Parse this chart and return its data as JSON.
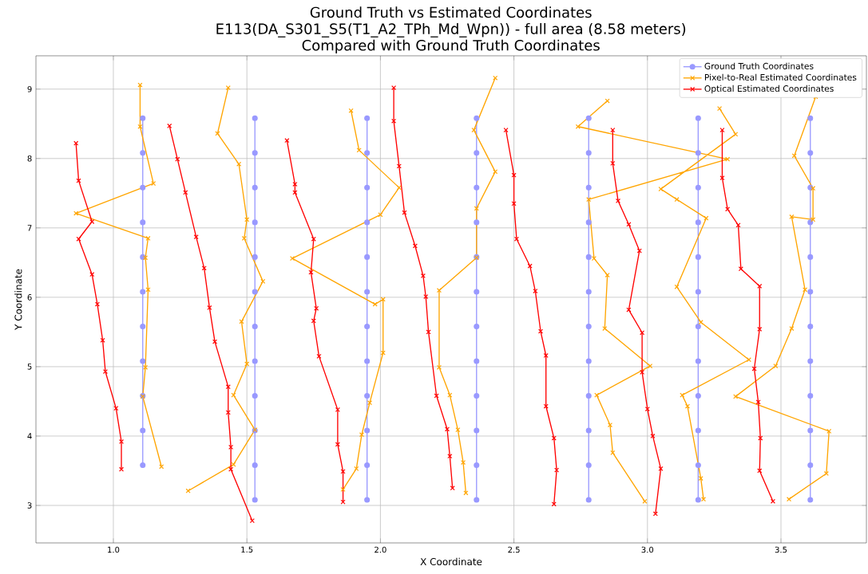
{
  "chart_data": {
    "type": "line",
    "title": "Ground Truth vs Estimated Coordinates",
    "subtitle": "E113(DA_S301_S5(T1_A2_TPh_Md_Wpn)) - full area (8.58 meters)",
    "annotations": [
      "Compared with Ground Truth Coordinates"
    ],
    "xlabel": "X Coordinate",
    "ylabel": "Y Coordinate",
    "xlim": [
      0.71,
      3.82
    ],
    "ylim": [
      2.46,
      9.48
    ],
    "xticks": [
      {
        "value": 1.0,
        "label": "1.0"
      },
      {
        "value": 1.5,
        "label": "1.5"
      },
      {
        "value": 2.0,
        "label": "2.0"
      },
      {
        "value": 2.5,
        "label": "2.5"
      },
      {
        "value": 3.0,
        "label": "3.0"
      },
      {
        "value": 3.5,
        "label": "3.5"
      }
    ],
    "yticks": [
      3,
      4,
      5,
      6,
      7,
      8,
      9
    ],
    "grid": true,
    "legend": "top right",
    "line_style": "solid",
    "series": [
      {
        "name": "Ground Truth Coordinates",
        "color": "#9999ff",
        "marker": "circle",
        "x": [
          1.11,
          1.11,
          1.11,
          1.11,
          1.11,
          1.11,
          1.11,
          1.11,
          1.11,
          1.11,
          1.11,
          null,
          1.53,
          1.53,
          1.53,
          1.53,
          1.53,
          1.53,
          1.53,
          1.53,
          1.53,
          1.53,
          1.53,
          1.53,
          null,
          1.95,
          1.95,
          1.95,
          1.95,
          1.95,
          1.95,
          1.95,
          1.95,
          1.95,
          1.95,
          1.95,
          1.95,
          null,
          2.36,
          2.36,
          2.36,
          2.36,
          2.36,
          2.36,
          2.36,
          2.36,
          2.36,
          2.36,
          2.36,
          2.36,
          null,
          2.78,
          2.78,
          2.78,
          2.78,
          2.78,
          2.78,
          2.78,
          2.78,
          2.78,
          2.78,
          2.78,
          2.78,
          null,
          3.19,
          3.19,
          3.19,
          3.19,
          3.19,
          3.19,
          3.19,
          3.19,
          3.19,
          3.19,
          3.19,
          3.19,
          null,
          3.61,
          3.61,
          3.61,
          3.61,
          3.61,
          3.61,
          3.61,
          3.61,
          3.61,
          3.61,
          3.61,
          3.61
        ],
        "values": [
          8.58,
          8.08,
          7.58,
          7.08,
          6.58,
          6.08,
          5.58,
          5.08,
          4.58,
          4.08,
          3.58,
          null,
          8.58,
          8.08,
          7.58,
          7.08,
          6.58,
          6.08,
          5.58,
          5.08,
          4.58,
          4.08,
          3.58,
          3.08,
          null,
          8.58,
          8.08,
          7.58,
          7.08,
          6.58,
          6.08,
          5.58,
          5.08,
          4.58,
          4.08,
          3.58,
          3.08,
          null,
          8.58,
          8.08,
          7.58,
          7.08,
          6.58,
          6.08,
          5.58,
          5.08,
          4.58,
          4.08,
          3.58,
          3.08,
          null,
          8.58,
          8.08,
          7.58,
          7.08,
          6.58,
          6.08,
          5.58,
          5.08,
          4.58,
          4.08,
          3.58,
          3.08,
          null,
          8.58,
          8.08,
          7.58,
          7.08,
          6.58,
          6.08,
          5.58,
          5.08,
          4.58,
          4.08,
          3.58,
          3.08,
          null,
          8.58,
          8.08,
          7.58,
          7.08,
          6.58,
          6.08,
          5.58,
          5.08,
          4.58,
          4.08,
          3.58,
          3.08
        ]
      },
      {
        "name": "Pixel-to-Real Estimated Coordinates",
        "color": "#ffa500",
        "marker": "cross",
        "x": [
          1.1,
          1.1,
          1.15,
          0.86,
          1.13,
          1.12,
          1.13,
          1.12,
          1.11,
          1.18,
          null,
          1.43,
          1.39,
          1.47,
          1.5,
          1.49,
          1.56,
          1.48,
          1.5,
          1.45,
          1.53,
          1.45,
          1.28,
          null,
          1.89,
          1.92,
          2.07,
          2.0,
          1.67,
          1.98,
          2.01,
          2.01,
          1.96,
          1.93,
          1.91,
          1.86,
          null,
          2.43,
          2.35,
          2.43,
          2.36,
          2.36,
          2.22,
          2.22,
          2.26,
          2.29,
          2.31,
          2.32,
          null,
          2.85,
          2.74,
          3.3,
          2.78,
          2.8,
          2.85,
          2.84,
          3.01,
          2.81,
          2.86,
          2.87,
          2.99,
          null,
          3.27,
          3.33,
          3.05,
          3.11,
          3.22,
          3.11,
          3.2,
          3.38,
          3.13,
          3.15,
          3.2,
          3.21,
          null,
          3.63,
          3.55,
          3.62,
          3.62,
          3.54,
          3.59,
          3.54,
          3.48,
          3.33,
          3.68,
          3.67,
          3.53
        ],
        "values": [
          9.06,
          8.46,
          7.64,
          7.21,
          6.85,
          6.57,
          6.11,
          4.99,
          4.57,
          3.56,
          null,
          9.02,
          8.36,
          7.92,
          7.12,
          6.85,
          6.23,
          5.65,
          5.04,
          4.59,
          4.09,
          3.59,
          3.21,
          null,
          8.69,
          8.12,
          7.58,
          7.19,
          6.56,
          5.9,
          5.97,
          5.2,
          4.48,
          4.02,
          3.53,
          3.23,
          null,
          9.16,
          8.41,
          7.81,
          7.28,
          6.57,
          6.1,
          4.99,
          4.59,
          4.09,
          3.62,
          3.18,
          null,
          8.83,
          8.46,
          7.99,
          7.41,
          6.56,
          6.32,
          5.55,
          5.01,
          4.59,
          4.16,
          3.76,
          3.06,
          null,
          8.72,
          8.35,
          7.56,
          7.41,
          7.14,
          6.15,
          5.64,
          5.1,
          4.59,
          4.43,
          3.39,
          3.09,
          null,
          8.89,
          8.04,
          7.57,
          7.12,
          7.16,
          6.11,
          5.55,
          5.01,
          4.57,
          4.07,
          3.46,
          3.09
        ]
      },
      {
        "name": "Optical Estimated Coordinates",
        "color": "#ff0000",
        "marker": "cross",
        "x": [
          0.86,
          0.87,
          0.92,
          0.87,
          0.92,
          0.94,
          0.96,
          0.97,
          1.01,
          1.03,
          1.03,
          null,
          1.21,
          1.24,
          1.27,
          1.31,
          1.34,
          1.36,
          1.38,
          1.43,
          1.43,
          1.44,
          1.44,
          1.52,
          null,
          1.65,
          1.68,
          1.68,
          1.75,
          1.74,
          1.76,
          1.75,
          1.77,
          1.84,
          1.84,
          1.86,
          1.86,
          null,
          2.05,
          2.05,
          2.07,
          2.09,
          2.13,
          2.16,
          2.17,
          2.18,
          2.21,
          2.25,
          2.26,
          2.27,
          null,
          2.47,
          2.5,
          2.5,
          2.51,
          2.56,
          2.58,
          2.6,
          2.62,
          2.62,
          2.65,
          2.66,
          2.65,
          null,
          2.87,
          2.87,
          2.89,
          2.93,
          2.97,
          2.93,
          2.98,
          2.98,
          3.0,
          3.02,
          3.05,
          3.03,
          null,
          3.28,
          3.28,
          3.3,
          3.34,
          3.35,
          3.42,
          3.42,
          3.4,
          3.415,
          3.423,
          3.42,
          3.47
        ],
        "values": [
          8.22,
          7.68,
          7.09,
          6.84,
          6.33,
          5.9,
          5.38,
          4.93,
          4.4,
          3.92,
          3.52,
          null,
          8.47,
          7.99,
          7.51,
          6.87,
          6.42,
          5.85,
          5.36,
          4.71,
          4.34,
          3.84,
          3.52,
          2.78,
          null,
          8.26,
          7.63,
          7.51,
          6.84,
          6.36,
          5.84,
          5.66,
          5.15,
          4.38,
          3.88,
          3.49,
          3.05,
          null,
          9.02,
          8.54,
          7.89,
          7.22,
          6.74,
          6.31,
          6.01,
          5.5,
          4.58,
          4.1,
          3.71,
          3.25,
          null,
          8.41,
          7.76,
          7.35,
          6.84,
          6.45,
          6.09,
          5.51,
          5.16,
          4.43,
          3.97,
          3.51,
          3.02,
          null,
          8.41,
          7.93,
          7.39,
          7.05,
          6.67,
          5.82,
          5.49,
          4.92,
          4.39,
          4.0,
          3.53,
          2.88,
          null,
          8.41,
          7.72,
          7.27,
          7.04,
          6.41,
          6.16,
          5.54,
          4.97,
          4.49,
          3.97,
          3.5,
          3.06
        ]
      }
    ]
  }
}
